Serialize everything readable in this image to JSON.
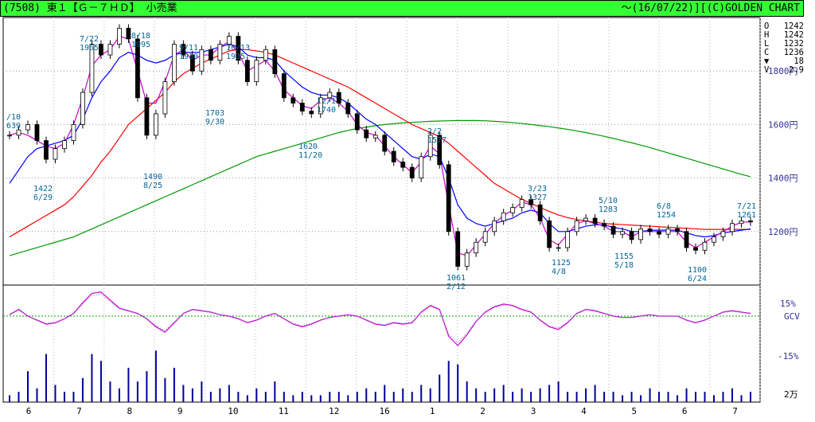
{
  "header": {
    "left": "(7508) 東１【Ｇ－７ＨＤ】 小売業",
    "right": "～(16/07/22)][(C)GOLDEN CHART"
  },
  "ohlc": [
    {
      "k": "O",
      "v": "1242"
    },
    {
      "k": "H",
      "v": "1242"
    },
    {
      "k": "L",
      "v": "1232"
    },
    {
      "k": "C",
      "v": "1236"
    },
    {
      "k": "▼",
      "v": "18"
    },
    {
      "k": "V",
      "v": "2.9"
    }
  ],
  "colors": {
    "frame": "#000000",
    "candle_up": "#ffffff",
    "candle_down": "#000000",
    "ma_short": "#cc00cc",
    "ma_mid": "#0000ff",
    "ma_long": "#ff0000",
    "ma_vlong": "#009900",
    "label": "#006699",
    "volume": "#000099",
    "gcv": "#cc00cc",
    "gcv_zero": "#00aa00",
    "axis_label": "#333399"
  },
  "chart_data": {
    "type": "line",
    "price_axis": {
      "ylim": [
        1000,
        2000
      ],
      "ticks": [
        1200,
        1400,
        1600,
        1800
      ],
      "tick_suffix": "円"
    },
    "months": [
      "6",
      "7",
      "8",
      "9",
      "10",
      "11",
      "12",
      "16",
      "1",
      "2",
      "3",
      "4",
      "5",
      "6",
      "7"
    ],
    "price_close": [
      1560,
      1580,
      1600,
      1540,
      1470,
      1510,
      1540,
      1600,
      1720,
      1900,
      1860,
      1900,
      1960,
      1920,
      1700,
      1560,
      1640,
      1760,
      1900,
      1860,
      1800,
      1880,
      1840,
      1900,
      1930,
      1840,
      1760,
      1840,
      1880,
      1790,
      1700,
      1680,
      1650,
      1640,
      1700,
      1720,
      1680,
      1640,
      1580,
      1550,
      1560,
      1500,
      1460,
      1440,
      1400,
      1480,
      1560,
      1450,
      1200,
      1070,
      1120,
      1160,
      1200,
      1240,
      1270,
      1290,
      1320,
      1300,
      1240,
      1140,
      1140,
      1200,
      1240,
      1250,
      1230,
      1220,
      1190,
      1200,
      1170,
      1210,
      1200,
      1190,
      1210,
      1200,
      1140,
      1130,
      1160,
      1180,
      1200,
      1230,
      1240,
      1236
    ],
    "ma_short_values": [
      1560,
      1570,
      1560,
      1540,
      1520,
      1510,
      1530,
      1600,
      1700,
      1820,
      1860,
      1880,
      1930,
      1920,
      1800,
      1680,
      1680,
      1760,
      1860,
      1880,
      1840,
      1860,
      1860,
      1890,
      1910,
      1870,
      1800,
      1820,
      1840,
      1800,
      1730,
      1700,
      1670,
      1660,
      1690,
      1700,
      1680,
      1650,
      1600,
      1570,
      1560,
      1520,
      1480,
      1450,
      1420,
      1460,
      1520,
      1490,
      1300,
      1120,
      1110,
      1150,
      1190,
      1230,
      1260,
      1280,
      1310,
      1300,
      1250,
      1170,
      1150,
      1190,
      1230,
      1240,
      1230,
      1220,
      1200,
      1200,
      1180,
      1200,
      1200,
      1200,
      1200,
      1200,
      1160,
      1140,
      1160,
      1180,
      1200,
      1220,
      1235,
      1236
    ],
    "ma_mid_values": [
      1380,
      1430,
      1480,
      1510,
      1520,
      1530,
      1540,
      1560,
      1620,
      1700,
      1760,
      1800,
      1850,
      1870,
      1860,
      1840,
      1830,
      1840,
      1860,
      1870,
      1870,
      1870,
      1880,
      1890,
      1900,
      1890,
      1860,
      1850,
      1850,
      1840,
      1800,
      1770,
      1740,
      1720,
      1710,
      1710,
      1700,
      1680,
      1650,
      1620,
      1600,
      1570,
      1540,
      1510,
      1480,
      1470,
      1490,
      1480,
      1400,
      1300,
      1250,
      1230,
      1220,
      1230,
      1240,
      1250,
      1270,
      1280,
      1270,
      1230,
      1200,
      1200,
      1210,
      1220,
      1225,
      1225,
      1215,
      1210,
      1200,
      1200,
      1205,
      1205,
      1205,
      1205,
      1195,
      1185,
      1180,
      1185,
      1195,
      1200,
      1205,
      1210
    ],
    "ma_long_values": [
      1180,
      1200,
      1220,
      1240,
      1260,
      1280,
      1300,
      1330,
      1370,
      1410,
      1460,
      1500,
      1550,
      1600,
      1630,
      1660,
      1690,
      1720,
      1760,
      1790,
      1810,
      1830,
      1845,
      1860,
      1875,
      1880,
      1880,
      1875,
      1870,
      1860,
      1845,
      1830,
      1815,
      1800,
      1785,
      1770,
      1755,
      1740,
      1720,
      1700,
      1680,
      1660,
      1640,
      1620,
      1600,
      1585,
      1570,
      1555,
      1530,
      1500,
      1470,
      1440,
      1410,
      1380,
      1360,
      1340,
      1320,
      1305,
      1290,
      1275,
      1262,
      1252,
      1245,
      1240,
      1235,
      1230,
      1228,
      1226,
      1224,
      1222,
      1220,
      1218,
      1216,
      1214,
      1212,
      1210,
      1208,
      1208,
      1208,
      1208,
      1208,
      1208
    ],
    "ma_vlong_values": [
      1110,
      1120,
      1130,
      1140,
      1150,
      1160,
      1170,
      1180,
      1195,
      1210,
      1225,
      1240,
      1255,
      1270,
      1285,
      1300,
      1315,
      1330,
      1345,
      1360,
      1375,
      1390,
      1405,
      1420,
      1435,
      1450,
      1465,
      1480,
      1490,
      1500,
      1510,
      1520,
      1530,
      1540,
      1550,
      1560,
      1570,
      1578,
      1585,
      1590,
      1596,
      1600,
      1603,
      1606,
      1608,
      1610,
      1612,
      1613,
      1614,
      1615,
      1615,
      1615,
      1614,
      1612,
      1610,
      1607,
      1604,
      1600,
      1596,
      1592,
      1587,
      1582,
      1576,
      1570,
      1563,
      1556,
      1548,
      1540,
      1532,
      1523,
      1514,
      1504,
      1494,
      1484,
      1474,
      1464,
      1454,
      1444,
      1434,
      1424,
      1414,
      1405
    ],
    "annotations": [
      {
        "date": "/10",
        "value": "639"
      },
      {
        "date": "6/29",
        "value": "1422"
      },
      {
        "date": "7/22",
        "value": "1965"
      },
      {
        "date": "8/18",
        "value": "1995"
      },
      {
        "date": "8/25",
        "value": "1490"
      },
      {
        "date": "9/11",
        "value": "1930"
      },
      {
        "date": "9/30",
        "value": "1703"
      },
      {
        "date": "10/13",
        "value": "1935"
      },
      {
        "date": "11/20",
        "value": "1620"
      },
      {
        "date": "12/1",
        "value": "1740"
      },
      {
        "date": "2/2",
        "value": "1577"
      },
      {
        "date": "2/12",
        "value": "1061"
      },
      {
        "date": "3/23",
        "value": "1327"
      },
      {
        "date": "4/8",
        "value": "1125"
      },
      {
        "date": "5/10",
        "value": "1283"
      },
      {
        "date": "5/18",
        "value": "1155"
      },
      {
        "date": "6/8",
        "value": "1254"
      },
      {
        "date": "6/24",
        "value": "1100"
      },
      {
        "date": "7/21",
        "value": "1261"
      }
    ],
    "gcv": {
      "ylim": [
        -22,
        22
      ],
      "tick_labels": [
        "15%",
        "GCV",
        "-15%"
      ],
      "values": [
        1,
        5,
        0,
        -3,
        -6,
        -5,
        -2,
        2,
        10,
        17,
        18,
        12,
        6,
        4,
        2,
        -2,
        -8,
        -12,
        -5,
        2,
        5,
        4,
        3,
        1,
        0,
        -2,
        -5,
        -3,
        0,
        2,
        -2,
        -6,
        -8,
        -6,
        -3,
        -1,
        0,
        1,
        0,
        -3,
        -6,
        -7,
        -5,
        -6,
        -5,
        3,
        8,
        5,
        -15,
        -22,
        -14,
        -4,
        3,
        7,
        9,
        8,
        5,
        3,
        -3,
        -8,
        -10,
        -5,
        2,
        5,
        4,
        2,
        0,
        -1,
        -1,
        0,
        1,
        0,
        0,
        0,
        -3,
        -5,
        -3,
        0,
        3,
        4,
        3,
        2
      ]
    },
    "volume": {
      "tick_label": "2万",
      "values": [
        2,
        3,
        9,
        4,
        14,
        5,
        3,
        3,
        7,
        14,
        12,
        6,
        4,
        10,
        6,
        9,
        15,
        7,
        10,
        5,
        4,
        6,
        3,
        4,
        5,
        3,
        2,
        4,
        3,
        6,
        3,
        2,
        3,
        2,
        2,
        3,
        3,
        2,
        3,
        4,
        3,
        5,
        3,
        4,
        3,
        5,
        4,
        8,
        12,
        11,
        6,
        4,
        3,
        4,
        5,
        3,
        4,
        3,
        4,
        5,
        6,
        3,
        3,
        4,
        5,
        3,
        3,
        2,
        3,
        2,
        4,
        3,
        3,
        2,
        4,
        3,
        3,
        2,
        3,
        4,
        2,
        3
      ]
    }
  }
}
